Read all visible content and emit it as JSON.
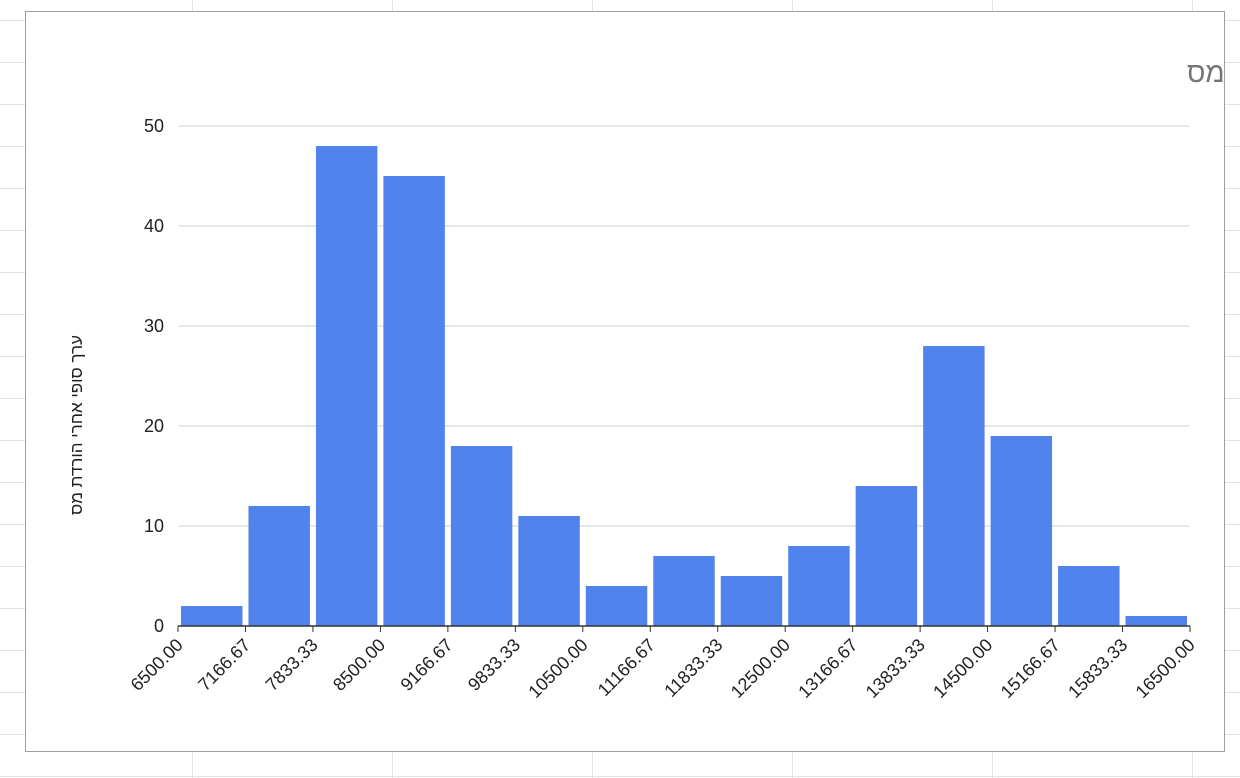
{
  "chart_data": {
    "type": "bar",
    "title": "ערך סופי אחרי הורדת מס",
    "ylabel": "ערך סופי אחרי הורדת מס",
    "xlabel": "",
    "bin_edges": [
      "6500.00",
      "7166.67",
      "7833.33",
      "8500.00",
      "9166.67",
      "9833.33",
      "10500.00",
      "11166.67",
      "11833.33",
      "12500.00",
      "13166.67",
      "13833.33",
      "14500.00",
      "15166.67",
      "15833.33",
      "16500.00"
    ],
    "values": [
      2,
      12,
      48,
      45,
      18,
      11,
      4,
      7,
      5,
      8,
      14,
      28,
      19,
      6,
      1
    ],
    "y_ticks": [
      0,
      10,
      20,
      30,
      40,
      50
    ],
    "ylim": [
      0,
      50
    ],
    "grid": true,
    "legend": "none",
    "bar_color": "#5183ec",
    "title_color": "#757575",
    "grid_color": "#cccccc"
  }
}
